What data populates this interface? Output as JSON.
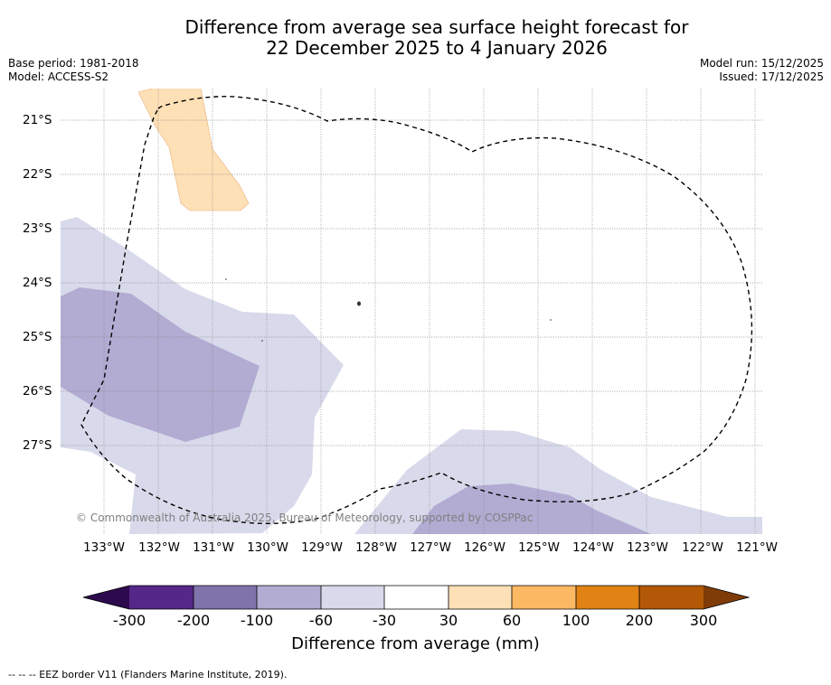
{
  "title_line1": "Difference from average sea surface height forecast for",
  "title_line2": "22 December 2025 to 4 January 2026",
  "base_period": "Base period: 1981-2018",
  "model": "Model: ACCESS-S2",
  "model_run": "Model run: 15/12/2025",
  "issued": "Issued: 17/12/2025",
  "lat_labels": [
    "21°S",
    "22°S",
    "23°S",
    "24°S",
    "25°S",
    "26°S",
    "27°S"
  ],
  "lon_labels": [
    "133°W",
    "132°W",
    "131°W",
    "130°W",
    "129°W",
    "128°W",
    "127°W",
    "126°W",
    "125°W",
    "124°W",
    "123°W",
    "122°W",
    "121°W"
  ],
  "copyright": "© Commonwealth of Australia 2025, Bureau of Meteorology, supported by COSPPac",
  "colorbar": {
    "ticks": [
      "-300",
      "-200",
      "-100",
      "-60",
      "-30",
      "30",
      "60",
      "100",
      "200",
      "300"
    ],
    "colors": [
      "#2d0a4e",
      "#542788",
      "#8073ac",
      "#b2abd2",
      "#d8daeb",
      "#ffffff",
      "#fee0b6",
      "#fdb863",
      "#e08214",
      "#b35806",
      "#7f3b08"
    ],
    "label": "Difference from average (mm)"
  },
  "footnote": "--  --  -- EEZ border V11 (Flanders Marine Institute, 2019)."
}
